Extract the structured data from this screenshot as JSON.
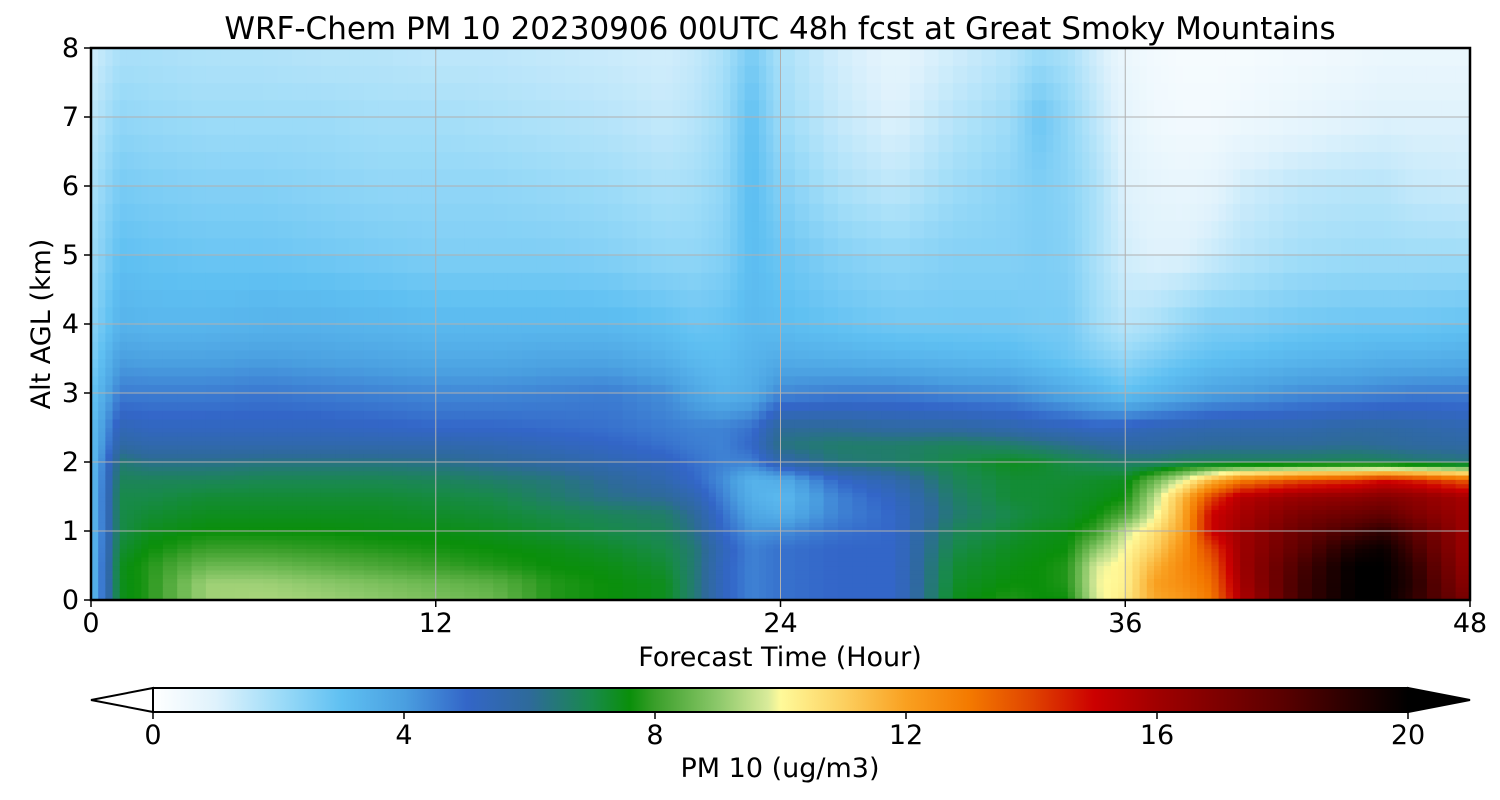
{
  "chart_data": {
    "type": "heatmap",
    "title": "WRF-Chem PM 10  20230906 00UTC 48h fcst at Great Smoky Mountains",
    "xlabel": "Forecast Time (Hour)",
    "ylabel": "Alt AGL (km)",
    "xlim": [
      0,
      48
    ],
    "ylim": [
      0,
      8
    ],
    "xticks": [
      0,
      12,
      24,
      36,
      48
    ],
    "yticks": [
      0,
      1,
      2,
      3,
      4,
      5,
      6,
      7,
      8
    ],
    "grid": true,
    "colorbar": {
      "label": "PM 10  (ug/m3)",
      "range": [
        0,
        20
      ],
      "ticks": [
        0,
        4,
        8,
        12,
        16,
        20
      ],
      "extend": "both",
      "orientation": "horizontal",
      "stops": [
        {
          "v": 0,
          "c": "#ffffff"
        },
        {
          "v": 1,
          "c": "#dff2fc"
        },
        {
          "v": 2,
          "c": "#9edcf8"
        },
        {
          "v": 3,
          "c": "#5fc0f2"
        },
        {
          "v": 4,
          "c": "#4a9fe0"
        },
        {
          "v": 5,
          "c": "#3366c8"
        },
        {
          "v": 6,
          "c": "#2e6a9a"
        },
        {
          "v": 7,
          "c": "#188a4a"
        },
        {
          "v": 7.6,
          "c": "#0a8f0a"
        },
        {
          "v": 8,
          "c": "#3a9f2a"
        },
        {
          "v": 9,
          "c": "#8cc86a"
        },
        {
          "v": 9.8,
          "c": "#d9eb9a"
        },
        {
          "v": 10,
          "c": "#fffa9a"
        },
        {
          "v": 11,
          "c": "#fcd060"
        },
        {
          "v": 12,
          "c": "#f9a020"
        },
        {
          "v": 13,
          "c": "#f47a00"
        },
        {
          "v": 14,
          "c": "#e04400"
        },
        {
          "v": 15,
          "c": "#cc0000"
        },
        {
          "v": 16,
          "c": "#a00000"
        },
        {
          "v": 18,
          "c": "#5a0000"
        },
        {
          "v": 20,
          "c": "#000000"
        }
      ]
    },
    "grid_x": [
      0,
      1,
      2,
      4,
      6,
      8,
      10,
      12,
      14,
      16,
      18,
      20,
      21,
      22,
      23,
      24,
      26,
      28,
      30,
      32,
      33,
      34,
      35,
      36,
      37,
      38,
      39,
      40,
      42,
      44,
      45,
      46,
      48
    ],
    "grid_y": [
      0,
      0.25,
      0.5,
      0.75,
      1,
      1.25,
      1.5,
      1.75,
      2,
      2.25,
      2.5,
      3,
      3.5,
      4,
      5,
      6,
      7,
      8
    ],
    "values": [
      [
        3.0,
        7.4,
        7.8,
        9.2,
        9.3,
        9.2,
        9.0,
        8.8,
        8.6,
        7.8,
        7.6,
        7.4,
        6.5,
        5.2,
        4.5,
        4.8,
        5.0,
        5.0,
        7.4,
        7.8,
        7.6,
        7.6,
        9.8,
        10.4,
        11.8,
        12.2,
        13.0,
        15.5,
        18.5,
        20.0,
        20.0,
        19.0,
        17.0
      ],
      [
        3.0,
        7.4,
        7.8,
        9.2,
        9.2,
        9.0,
        8.8,
        8.6,
        8.4,
        7.8,
        7.6,
        7.4,
        6.5,
        5.2,
        4.5,
        4.8,
        5.0,
        5.0,
        7.3,
        7.6,
        7.6,
        7.8,
        9.9,
        10.2,
        12.0,
        12.5,
        13.2,
        15.8,
        18.5,
        20.0,
        20.0,
        19.2,
        16.5
      ],
      [
        3.0,
        7.4,
        7.8,
        8.6,
        8.6,
        8.4,
        8.2,
        8.0,
        7.8,
        7.6,
        7.5,
        7.2,
        6.5,
        5.2,
        4.5,
        4.8,
        5.0,
        5.0,
        7.2,
        7.5,
        7.6,
        7.8,
        9.8,
        10.2,
        11.6,
        12.6,
        13.5,
        16.0,
        18.3,
        20.0,
        20.0,
        19.0,
        16.2
      ],
      [
        3.0,
        7.2,
        7.6,
        8.0,
        8.0,
        7.9,
        7.8,
        7.7,
        7.6,
        7.5,
        7.3,
        7.0,
        6.5,
        5.3,
        4.5,
        4.8,
        5.0,
        5.0,
        7.0,
        7.4,
        7.5,
        7.6,
        9.0,
        10.0,
        11.0,
        12.4,
        14.0,
        16.0,
        17.8,
        19.5,
        19.8,
        18.5,
        16.0
      ],
      [
        3.0,
        7.0,
        7.4,
        7.6,
        7.6,
        7.6,
        7.5,
        7.5,
        7.4,
        7.2,
        7.0,
        6.8,
        6.2,
        5.0,
        4.2,
        4.3,
        4.8,
        5.0,
        6.8,
        7.2,
        7.4,
        7.5,
        8.0,
        9.6,
        10.6,
        12.0,
        15.0,
        16.0,
        17.5,
        18.5,
        19.0,
        18.0,
        16.0
      ],
      [
        3.0,
        7.0,
        7.2,
        7.4,
        7.4,
        7.4,
        7.4,
        7.3,
        7.2,
        7.0,
        6.8,
        6.6,
        6.0,
        4.8,
        3.8,
        3.5,
        4.5,
        5.0,
        6.5,
        7.0,
        7.2,
        7.3,
        7.6,
        8.2,
        9.8,
        11.8,
        15.0,
        15.8,
        17.0,
        17.5,
        17.8,
        17.0,
        16.0
      ],
      [
        3.0,
        7.0,
        7.0,
        7.2,
        7.2,
        7.2,
        7.2,
        7.1,
        7.0,
        6.6,
        6.2,
        6.0,
        5.5,
        4.5,
        3.5,
        3.2,
        4.5,
        5.2,
        6.6,
        7.2,
        7.2,
        7.3,
        7.4,
        7.6,
        9.4,
        11.5,
        14.0,
        15.5,
        16.2,
        16.5,
        16.8,
        16.5,
        15.8
      ],
      [
        3.0,
        6.8,
        6.8,
        6.8,
        6.9,
        6.9,
        6.9,
        6.8,
        6.6,
        6.4,
        6.0,
        5.5,
        5.0,
        4.3,
        3.4,
        3.6,
        5.0,
        5.6,
        6.8,
        7.2,
        7.2,
        7.2,
        7.3,
        7.4,
        8.5,
        9.8,
        11.5,
        12.8,
        13.8,
        14.2,
        14.8,
        14.5,
        13.5
      ],
      [
        3.0,
        6.5,
        6.2,
        6.2,
        6.3,
        6.3,
        6.3,
        6.2,
        6.0,
        5.8,
        5.5,
        5.2,
        4.8,
        4.5,
        4.5,
        5.6,
        6.4,
        6.6,
        7.0,
        7.4,
        7.3,
        7.0,
        6.8,
        6.6,
        6.6,
        6.8,
        6.8,
        6.8,
        6.8,
        6.9,
        6.8,
        6.6,
        6.4
      ],
      [
        3.0,
        5.8,
        5.6,
        5.6,
        5.6,
        5.6,
        5.6,
        5.6,
        5.5,
        5.3,
        5.1,
        4.8,
        4.6,
        4.5,
        5.0,
        6.3,
        6.6,
        6.6,
        6.8,
        6.6,
        6.4,
        6.2,
        6.0,
        5.8,
        5.8,
        5.9,
        6.0,
        6.0,
        6.0,
        6.1,
        6.0,
        5.9,
        5.8
      ],
      [
        3.0,
        5.4,
        5.2,
        5.2,
        5.2,
        5.2,
        5.1,
        5.0,
        5.0,
        4.9,
        4.8,
        4.6,
        4.5,
        4.5,
        4.8,
        6.0,
        6.0,
        5.8,
        5.8,
        5.6,
        5.4,
        5.3,
        5.1,
        5.2,
        5.4,
        5.5,
        5.6,
        5.6,
        5.6,
        5.8,
        5.8,
        5.7,
        5.5
      ],
      [
        2.8,
        4.6,
        4.6,
        4.6,
        4.7,
        4.6,
        4.5,
        4.4,
        4.4,
        4.5,
        4.6,
        4.3,
        3.8,
        3.4,
        3.6,
        4.4,
        4.6,
        4.6,
        4.4,
        4.3,
        4.0,
        3.7,
        3.4,
        3.0,
        3.3,
        3.6,
        3.9,
        4.0,
        4.3,
        4.4,
        4.5,
        4.6,
        4.6
      ],
      [
        2.5,
        4.0,
        3.9,
        3.9,
        4.0,
        3.9,
        3.8,
        3.7,
        3.7,
        3.8,
        3.8,
        3.5,
        3.2,
        3.1,
        3.4,
        3.6,
        3.5,
        3.4,
        3.3,
        3.2,
        3.0,
        2.8,
        2.5,
        2.2,
        2.5,
        2.8,
        3.0,
        3.1,
        3.3,
        3.4,
        3.5,
        3.5,
        3.6
      ],
      [
        2.3,
        3.4,
        3.3,
        3.3,
        3.4,
        3.4,
        3.3,
        3.2,
        3.2,
        3.2,
        3.2,
        3.0,
        2.8,
        2.9,
        3.2,
        3.1,
        2.9,
        2.7,
        2.7,
        2.7,
        2.6,
        2.6,
        2.0,
        1.6,
        1.8,
        2.2,
        2.5,
        2.5,
        2.7,
        2.8,
        2.8,
        2.8,
        2.9
      ],
      [
        2.0,
        3.0,
        2.9,
        2.8,
        2.8,
        2.7,
        2.6,
        2.5,
        2.5,
        2.5,
        2.4,
        2.2,
        2.2,
        2.4,
        3.1,
        2.8,
        2.4,
        2.2,
        2.4,
        2.4,
        2.5,
        2.4,
        1.8,
        1.2,
        1.0,
        1.0,
        1.3,
        1.6,
        1.9,
        2.0,
        2.0,
        2.0,
        2.0
      ],
      [
        1.8,
        2.6,
        2.5,
        2.4,
        2.4,
        2.3,
        2.2,
        2.2,
        2.2,
        2.1,
        2.0,
        1.8,
        1.9,
        2.2,
        3.1,
        2.4,
        1.8,
        1.5,
        2.0,
        2.3,
        2.5,
        2.3,
        1.8,
        1.0,
        0.8,
        0.7,
        0.8,
        1.2,
        1.5,
        1.6,
        1.6,
        1.4,
        1.3
      ],
      [
        1.5,
        2.2,
        2.1,
        2.0,
        2.0,
        2.0,
        1.9,
        1.9,
        1.8,
        1.7,
        1.6,
        1.4,
        1.6,
        2.0,
        3.0,
        2.0,
        1.4,
        1.0,
        1.6,
        2.0,
        2.8,
        2.2,
        1.5,
        0.8,
        0.5,
        0.4,
        0.4,
        0.5,
        0.7,
        0.9,
        1.0,
        1.0,
        1.0
      ],
      [
        1.2,
        1.8,
        1.8,
        1.7,
        1.7,
        1.6,
        1.6,
        1.5,
        1.5,
        1.4,
        1.3,
        1.2,
        1.4,
        1.8,
        2.6,
        1.8,
        1.2,
        0.8,
        1.2,
        1.6,
        2.0,
        1.8,
        1.2,
        0.6,
        0.4,
        0.3,
        0.3,
        0.3,
        0.4,
        0.5,
        0.6,
        0.6,
        0.6
      ]
    ]
  }
}
